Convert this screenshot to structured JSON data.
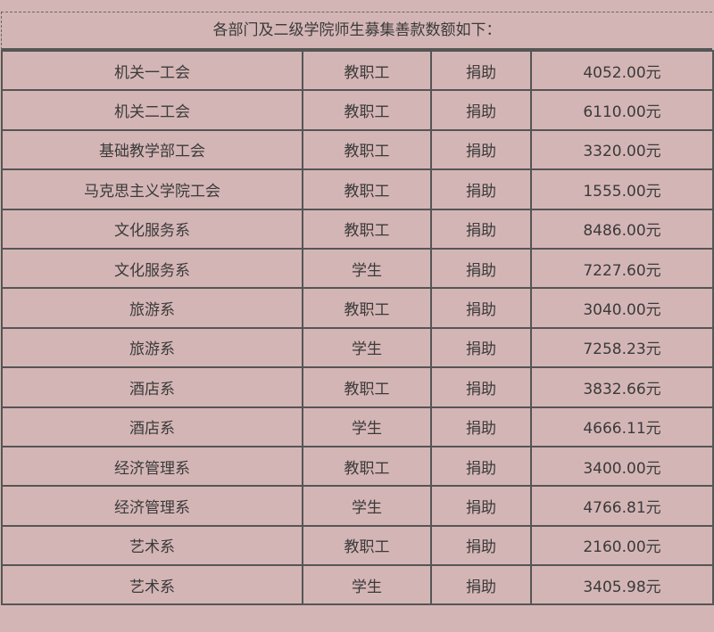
{
  "title": "各部门及二级学院师生募集善款数额如下：",
  "rows": [
    {
      "dept": "机关一工会",
      "group": "教职工",
      "type": "捐助",
      "amount": "4052.00元"
    },
    {
      "dept": "机关二工会",
      "group": "教职工",
      "type": "捐助",
      "amount": "6110.00元"
    },
    {
      "dept": "基础教学部工会",
      "group": "教职工",
      "type": "捐助",
      "amount": "3320.00元"
    },
    {
      "dept": "马克思主义学院工会",
      "group": "教职工",
      "type": "捐助",
      "amount": "1555.00元"
    },
    {
      "dept": "文化服务系",
      "group": "教职工",
      "type": "捐助",
      "amount": "8486.00元"
    },
    {
      "dept": "文化服务系",
      "group": "学生",
      "type": "捐助",
      "amount": "7227.60元"
    },
    {
      "dept": "旅游系",
      "group": "教职工",
      "type": "捐助",
      "amount": "3040.00元"
    },
    {
      "dept": "旅游系",
      "group": "学生",
      "type": "捐助",
      "amount": "7258.23元"
    },
    {
      "dept": "酒店系",
      "group": "教职工",
      "type": "捐助",
      "amount": "3832.66元"
    },
    {
      "dept": "酒店系",
      "group": "学生",
      "type": "捐助",
      "amount": "4666.11元"
    },
    {
      "dept": "经济管理系",
      "group": "教职工",
      "type": "捐助",
      "amount": "3400.00元"
    },
    {
      "dept": "经济管理系",
      "group": "学生",
      "type": "捐助",
      "amount": "4766.81元"
    },
    {
      "dept": "艺术系",
      "group": "教职工",
      "type": "捐助",
      "amount": "2160.00元"
    },
    {
      "dept": "艺术系",
      "group": "学生",
      "type": "捐助",
      "amount": "3405.98元"
    }
  ]
}
